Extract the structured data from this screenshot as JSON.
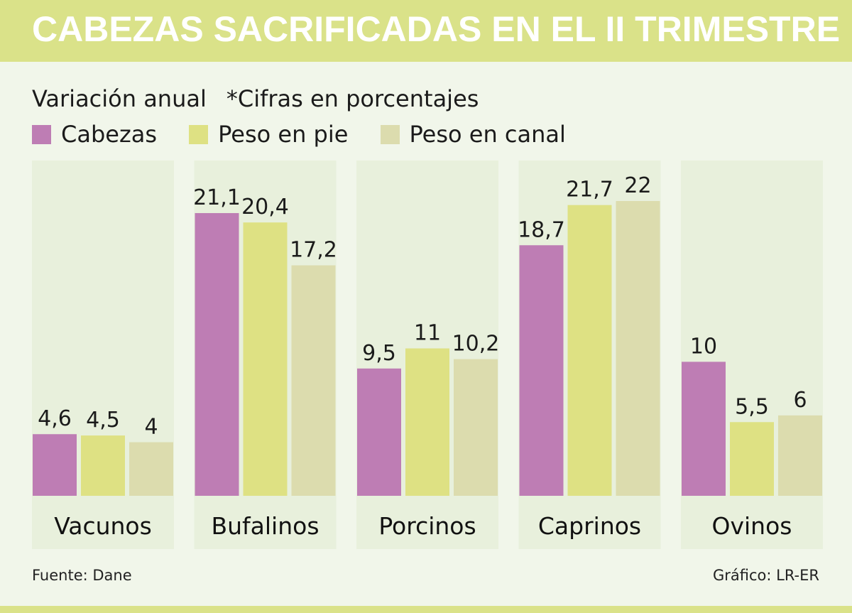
{
  "title": "CABEZAS SACRIFICADAS EN EL II TRIMESTRE",
  "subtitle": "Variación anual",
  "note": "*Cifras en porcentajes",
  "source": "Fuente:  Dane",
  "credit": "Gráfico: LR-ER",
  "colors": {
    "cabezas": "#be7db4",
    "peso_pie": "#dee183",
    "peso_canal": "#dcdcae",
    "panel": "#e8f0dc",
    "title_bar": "#dae289"
  },
  "chart_data": {
    "type": "bar",
    "title": "CABEZAS SACRIFICADAS EN EL II TRIMESTRE",
    "ylabel": "Variación anual (%)",
    "xlabel": "",
    "categories": [
      "Vacunos",
      "Bufalinos",
      "Porcinos",
      "Caprinos",
      "Ovinos"
    ],
    "series": [
      {
        "name": "Cabezas",
        "values": [
          4.6,
          21.1,
          9.5,
          18.7,
          10
        ],
        "labels": [
          "4,6",
          "21,1",
          "9,5",
          "18,7",
          "10"
        ]
      },
      {
        "name": "Peso en pie",
        "values": [
          4.5,
          20.4,
          11,
          21.7,
          5.5
        ],
        "labels": [
          "4,5",
          "20,4",
          "11",
          "21,7",
          "5,5"
        ]
      },
      {
        "name": "Peso en canal",
        "values": [
          4,
          17.2,
          10.2,
          22,
          6
        ],
        "labels": [
          "4",
          "17,2",
          "10,2",
          "22",
          "6"
        ]
      }
    ],
    "ylim": [
      0,
      22
    ],
    "grid": false,
    "legend": "top-left"
  }
}
